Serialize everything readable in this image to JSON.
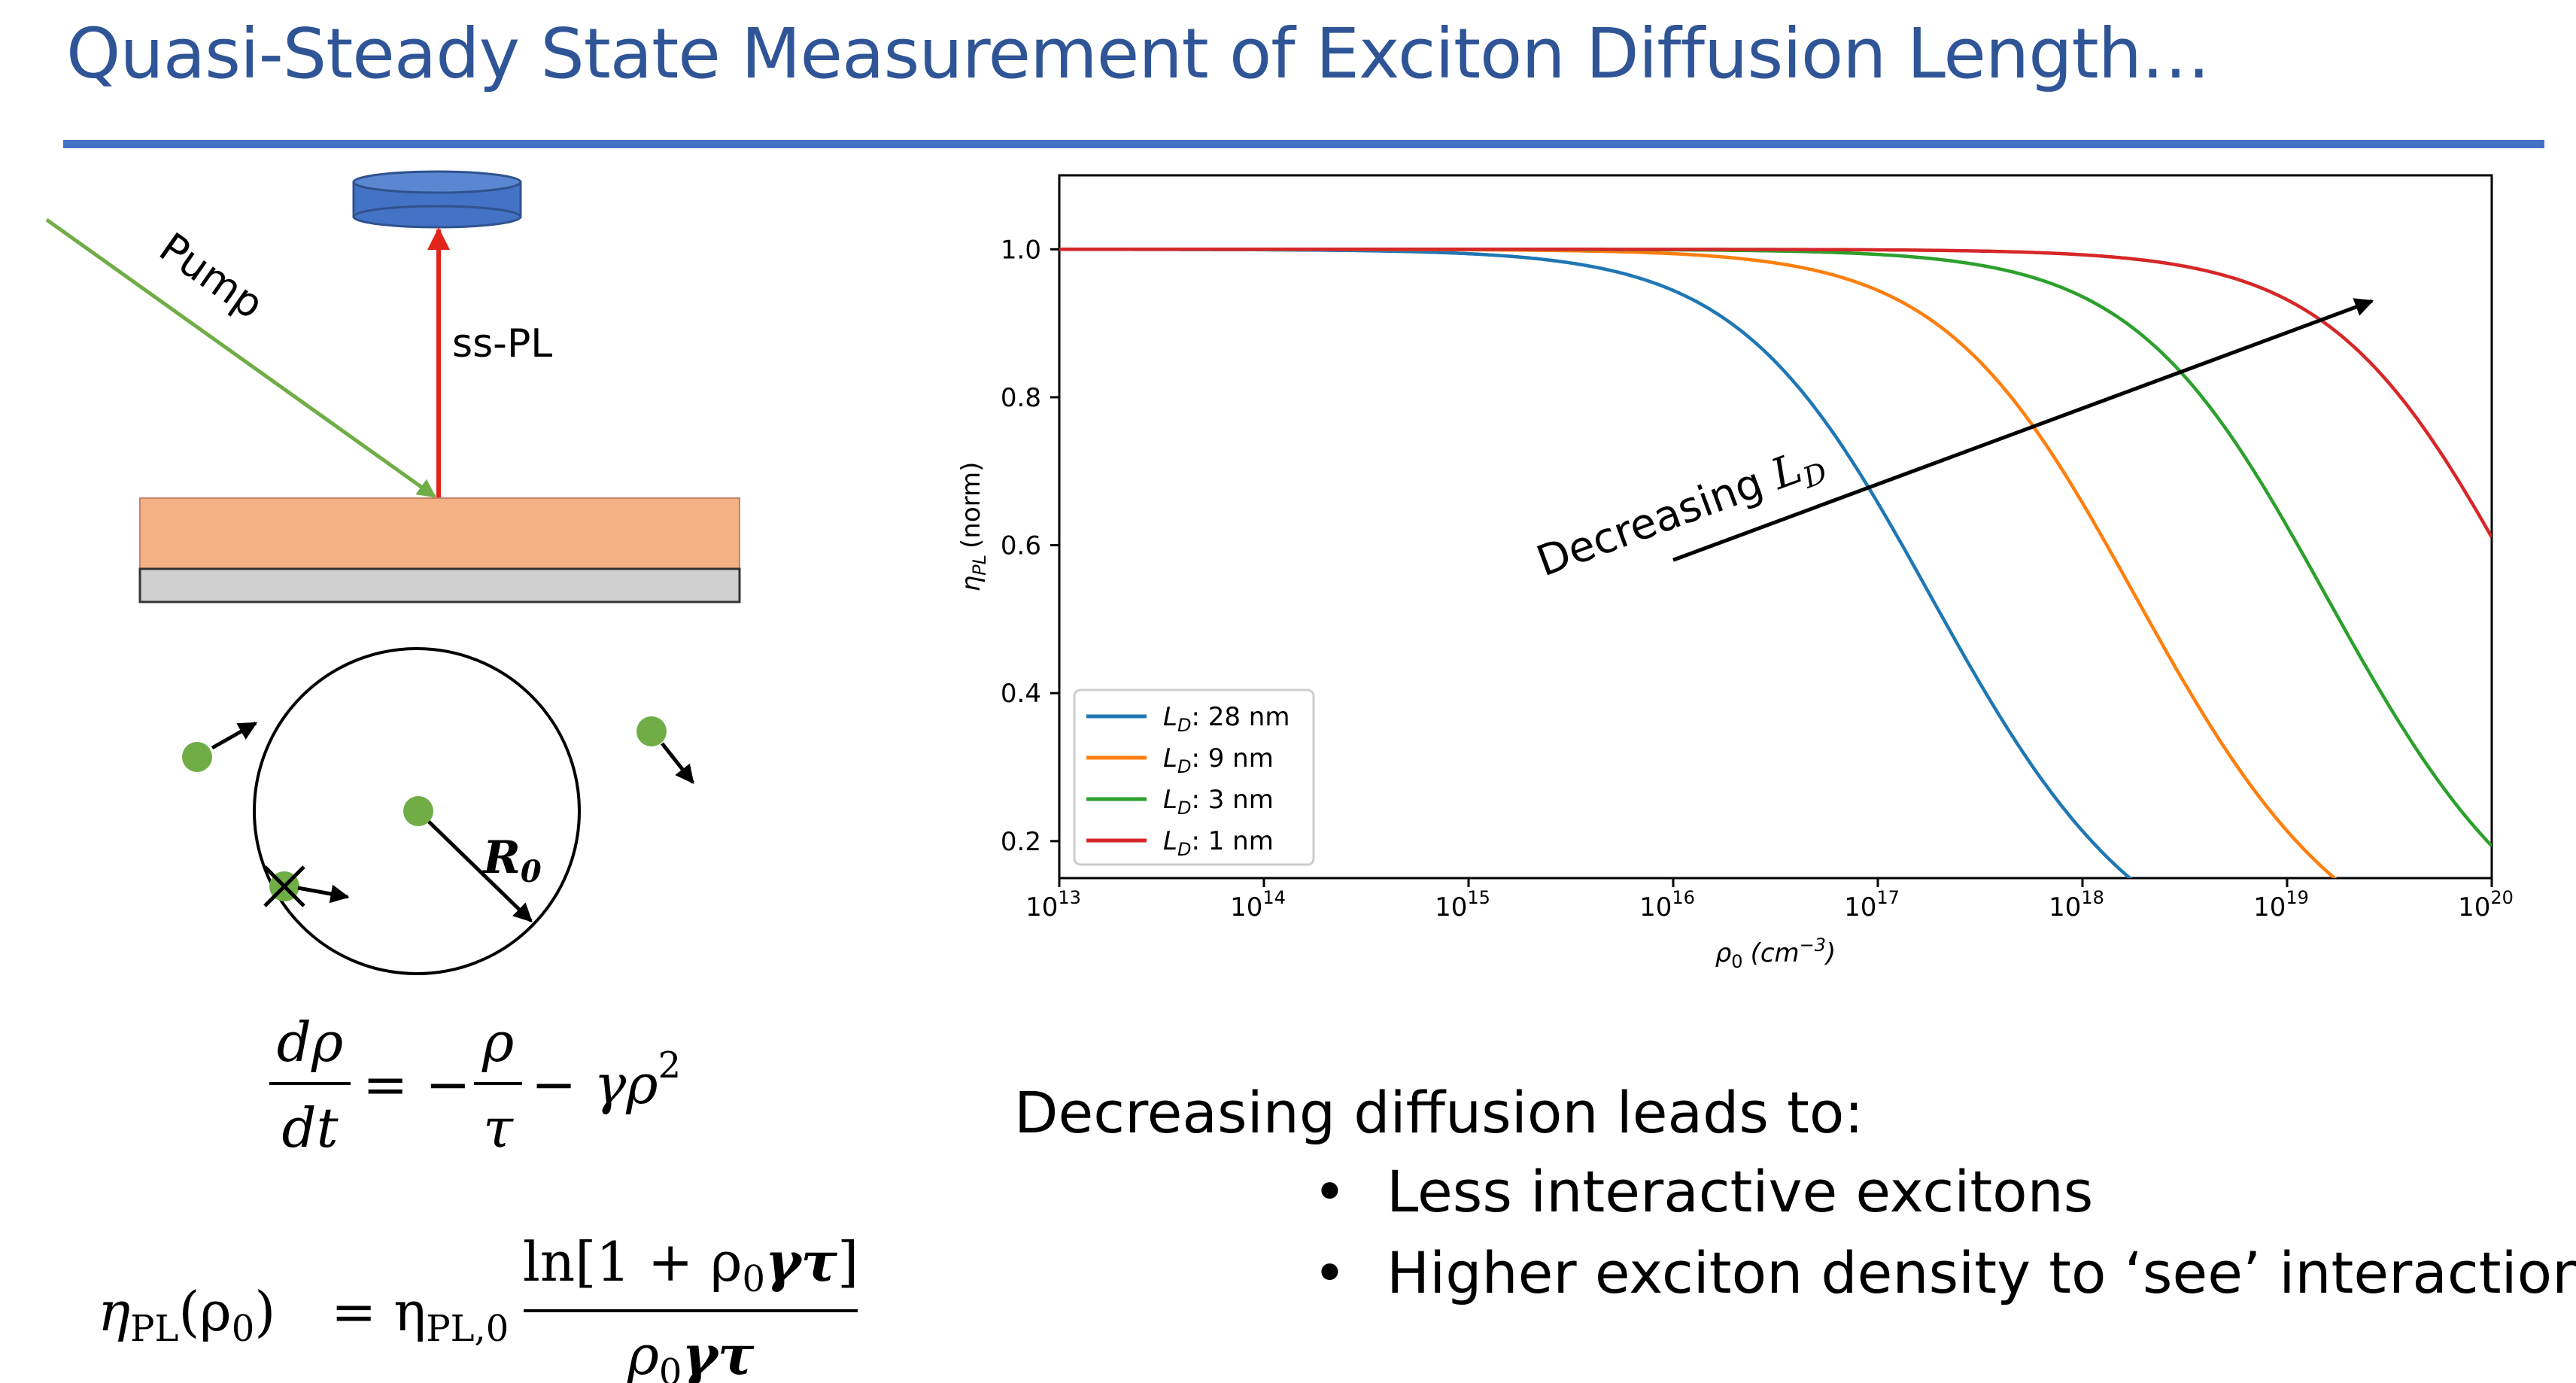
{
  "slide": {
    "title": "Quasi-Steady State Measurement of Exciton Diffusion Length…",
    "accent_color": "#2f5597",
    "rule_color": "#4472c4"
  },
  "schematic": {
    "pump_label": "Pump",
    "sspl_label": "ss-PL",
    "radius_label": "R",
    "radius_subscript": "0",
    "pump_color": "#70ad47",
    "pl_arrow_color": "#e3241b",
    "film_color": "#f4b183",
    "substrate_color": "#d0d0d0",
    "detector_color": "#4472c4",
    "exciton_color": "#70ad47"
  },
  "equations": {
    "rate_lhs_num": "dρ",
    "rate_lhs_den": "dt",
    "rate_eq_sign": "= −",
    "rate_frac_num": "ρ",
    "rate_frac_den": "τ",
    "rate_tail": "− γρ",
    "rate_tail_exp": "2",
    "eta_lhs": "η",
    "eta_lhs_sub": "PL",
    "eta_lhs_arg": "(ρ",
    "eta_lhs_arg_sub": "0",
    "eta_lhs_arg_close": ")",
    "eta_rhs_sym": "= η",
    "eta_rhs_sub": "PL,0",
    "eta_num_pre": "ln[1 + ρ",
    "eta_num_sub": "0",
    "eta_num_bold": "γτ",
    "eta_num_close": "]",
    "eta_den_pre": "ρ",
    "eta_den_sub": "0",
    "eta_den_bold": "γτ"
  },
  "chart_data": {
    "type": "line",
    "x_scale": "log",
    "xlim": [
      10000000000000.0,
      1e+20
    ],
    "ylim": [
      0.15,
      1.1
    ],
    "x_ticks": [
      13,
      14,
      15,
      16,
      17,
      18,
      19,
      20
    ],
    "x_tick_base": "10",
    "y_ticks": [
      "0.2",
      "0.4",
      "0.6",
      "0.8",
      "1.0"
    ],
    "y_tick_values": [
      0.2,
      0.4,
      0.6,
      0.8,
      1.0
    ],
    "xlabel": "ρ",
    "xlabel_sub": "0",
    "xlabel_unit": "(cm",
    "xlabel_unit_exp": "−3",
    "xlabel_unit_close": ")",
    "ylabel": "η",
    "ylabel_sub": "PL",
    "ylabel_unit": "(norm)",
    "legend_position": "lower-left",
    "series": [
      {
        "name": "L_D: 28 nm",
        "legend_var": "L",
        "legend_sub": "D",
        "legend_value": ": 28 nm",
        "color": "#1f77b4",
        "gamma_tau": 1.2e-17
      },
      {
        "name": "L_D: 9 nm",
        "legend_var": "L",
        "legend_sub": "D",
        "legend_value": ": 9 nm",
        "color": "#ff7f0e",
        "gamma_tau": 1.2e-18
      },
      {
        "name": "L_D: 3 nm",
        "legend_var": "L",
        "legend_sub": "D",
        "legend_value": ": 3 nm",
        "color": "#2ca02c",
        "gamma_tau": 1.4e-19
      },
      {
        "name": "L_D: 1 nm",
        "legend_var": "L",
        "legend_sub": "D",
        "legend_value": ": 1 nm",
        "color": "#d62728",
        "gamma_tau": 1.5e-20
      }
    ],
    "annotation": {
      "text": "Decreasing ",
      "var": "L",
      "sub": "D",
      "arrow_from": [
        1e+16,
        0.58
      ],
      "arrow_to": [
        2.6e+19,
        0.93
      ]
    }
  },
  "bullets": {
    "heading": "Decreasing diffusion leads to:",
    "items": [
      "Less interactive excitons",
      "Higher exciton density to ‘see’ interaction"
    ]
  }
}
